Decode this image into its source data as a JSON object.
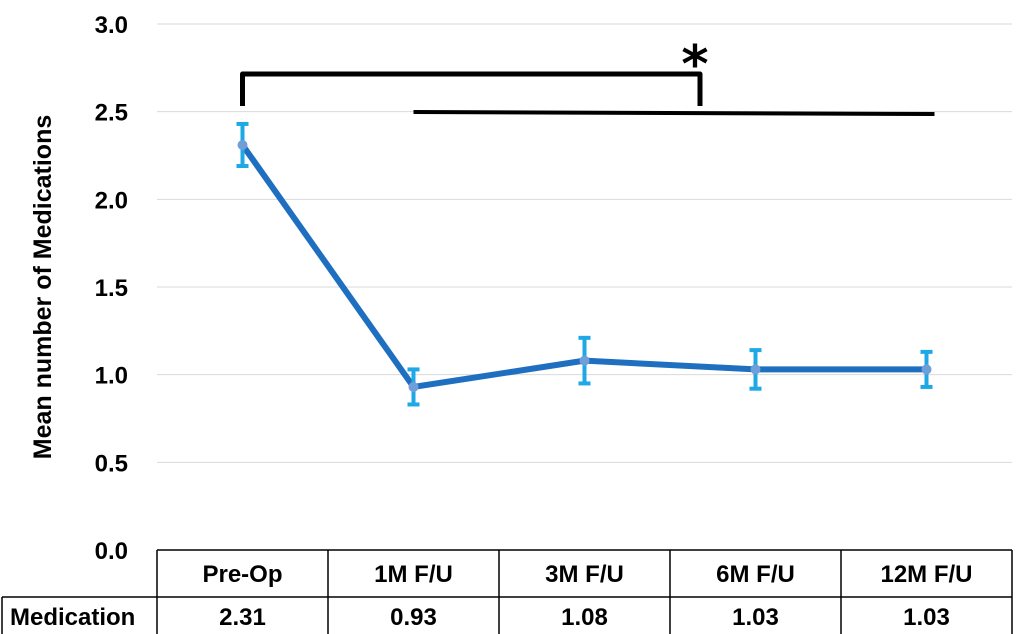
{
  "chart_data": {
    "type": "line",
    "categories": [
      "Pre-Op",
      "1M F/U",
      "3M F/U",
      "6M F/U",
      "12M F/U"
    ],
    "series": [
      {
        "name": "Medication",
        "values": [
          2.31,
          0.93,
          1.08,
          1.03,
          1.03
        ],
        "error": [
          0.12,
          0.1,
          0.13,
          0.11,
          0.1
        ]
      }
    ],
    "ylabel": "Mean number of Medications",
    "xlabel": "",
    "ylim": [
      0,
      3.0
    ],
    "yticks": [
      "0.0",
      "0.5",
      "1.0",
      "1.5",
      "2.0",
      "2.5",
      "3.0"
    ],
    "grid": true,
    "annotation": "*",
    "table": {
      "row_label": "Medication",
      "values": [
        "2.31",
        "0.93",
        "1.08",
        "1.03",
        "1.03"
      ]
    },
    "colors": {
      "line": "#1f6fc0",
      "error_bar": "#1ea8e6",
      "marker": "#6f9fd8",
      "grid": "#d9d9d9"
    }
  }
}
